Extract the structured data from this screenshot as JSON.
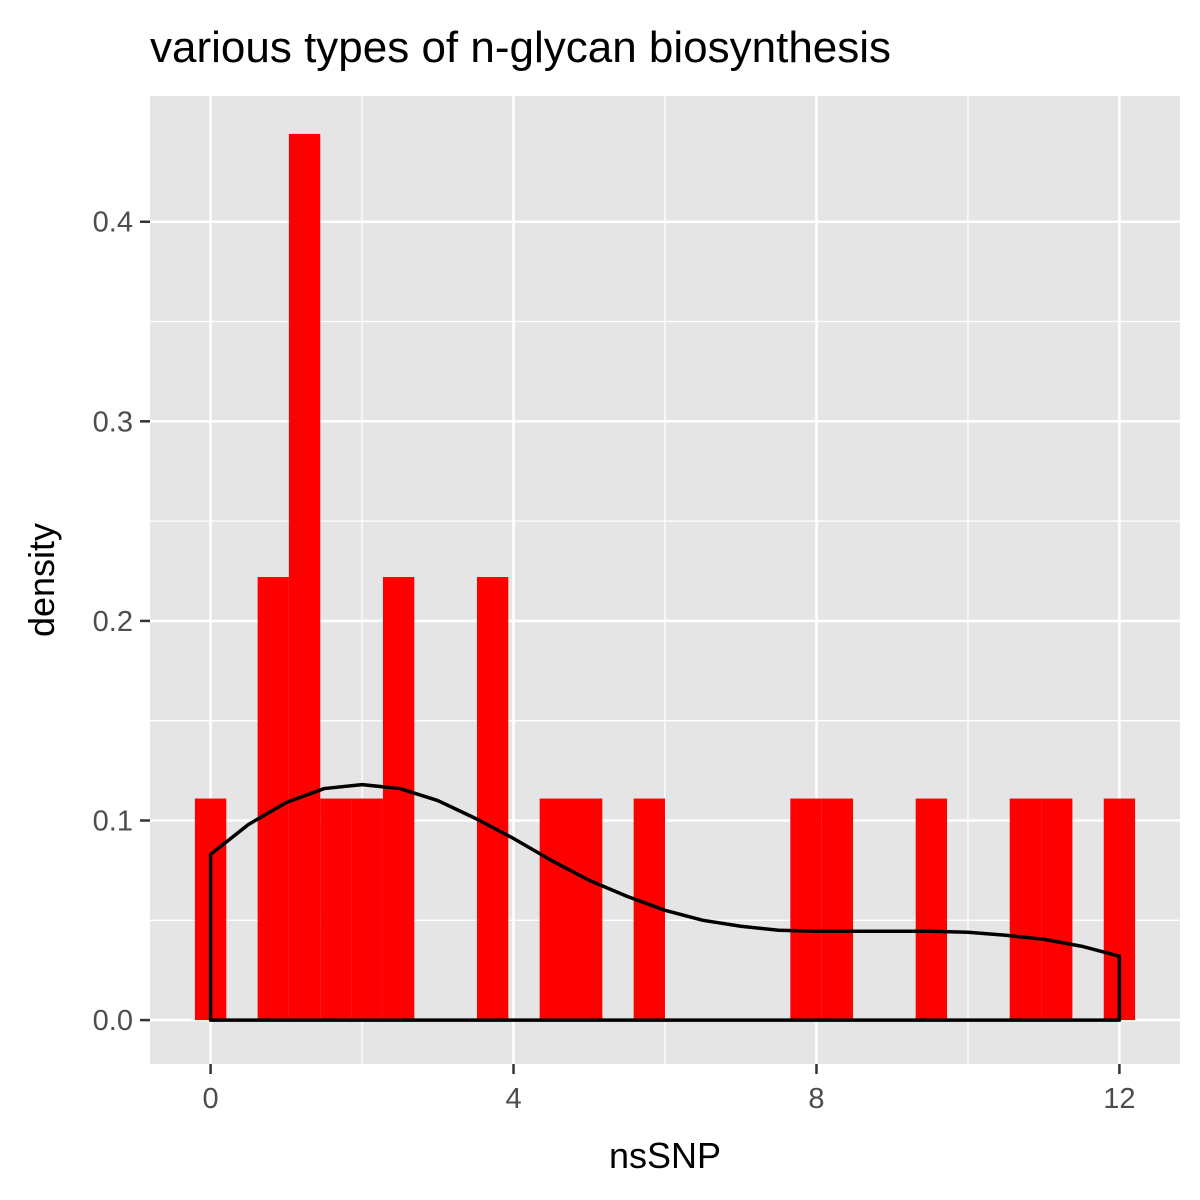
{
  "chart_data": {
    "type": "histogram",
    "title": "various types of n-glycan biosynthesis",
    "xlabel": "nsSNP",
    "ylabel": "density",
    "xlim": [
      -0.8,
      12.8
    ],
    "ylim": [
      -0.022,
      0.463
    ],
    "x_ticks": [
      0,
      4,
      8,
      12
    ],
    "x_tick_labels": [
      "0",
      "4",
      "8",
      "12"
    ],
    "y_ticks": [
      0.0,
      0.1,
      0.2,
      0.3,
      0.4
    ],
    "y_tick_labels": [
      "0.0",
      "0.1",
      "0.2",
      "0.3",
      "0.4"
    ],
    "grid": true,
    "legend": "none",
    "colors": {
      "panel": "#e5e5e5",
      "grid": "#ffffff",
      "bars": "#ff0000",
      "density_line": "#000000",
      "tick_label": "#4d4d4d",
      "tick": "#333333"
    },
    "histogram": {
      "bin_width": 0.4138,
      "bins": [
        {
          "x_min": -0.207,
          "x_max": 0.207,
          "density": 0.111
        },
        {
          "x_min": 0.621,
          "x_max": 1.034,
          "density": 0.222
        },
        {
          "x_min": 1.034,
          "x_max": 1.448,
          "density": 0.444
        },
        {
          "x_min": 1.448,
          "x_max": 1.862,
          "density": 0.111
        },
        {
          "x_min": 1.862,
          "x_max": 2.276,
          "density": 0.111
        },
        {
          "x_min": 2.276,
          "x_max": 2.69,
          "density": 0.222
        },
        {
          "x_min": 3.517,
          "x_max": 3.931,
          "density": 0.222
        },
        {
          "x_min": 4.345,
          "x_max": 4.759,
          "density": 0.111
        },
        {
          "x_min": 4.759,
          "x_max": 5.172,
          "density": 0.111
        },
        {
          "x_min": 5.586,
          "x_max": 6.0,
          "density": 0.111
        },
        {
          "x_min": 7.655,
          "x_max": 8.069,
          "density": 0.111
        },
        {
          "x_min": 8.069,
          "x_max": 8.483,
          "density": 0.111
        },
        {
          "x_min": 9.31,
          "x_max": 9.724,
          "density": 0.111
        },
        {
          "x_min": 10.552,
          "x_max": 10.966,
          "density": 0.111
        },
        {
          "x_min": 10.966,
          "x_max": 11.379,
          "density": 0.111
        },
        {
          "x_min": 11.793,
          "x_max": 12.207,
          "density": 0.111
        }
      ]
    },
    "density_curve": {
      "x": [
        0,
        0.5,
        1,
        1.5,
        2,
        2.5,
        3,
        3.5,
        4,
        4.5,
        5,
        5.5,
        6,
        6.5,
        7,
        7.5,
        8,
        8.5,
        9,
        9.5,
        10,
        10.5,
        11,
        11.5,
        12
      ],
      "y": [
        0.083,
        0.098,
        0.109,
        0.116,
        0.118,
        0.116,
        0.11,
        0.101,
        0.091,
        0.08,
        0.07,
        0.062,
        0.055,
        0.05,
        0.047,
        0.045,
        0.0445,
        0.0445,
        0.0445,
        0.0445,
        0.044,
        0.0425,
        0.0405,
        0.037,
        0.032
      ]
    }
  }
}
